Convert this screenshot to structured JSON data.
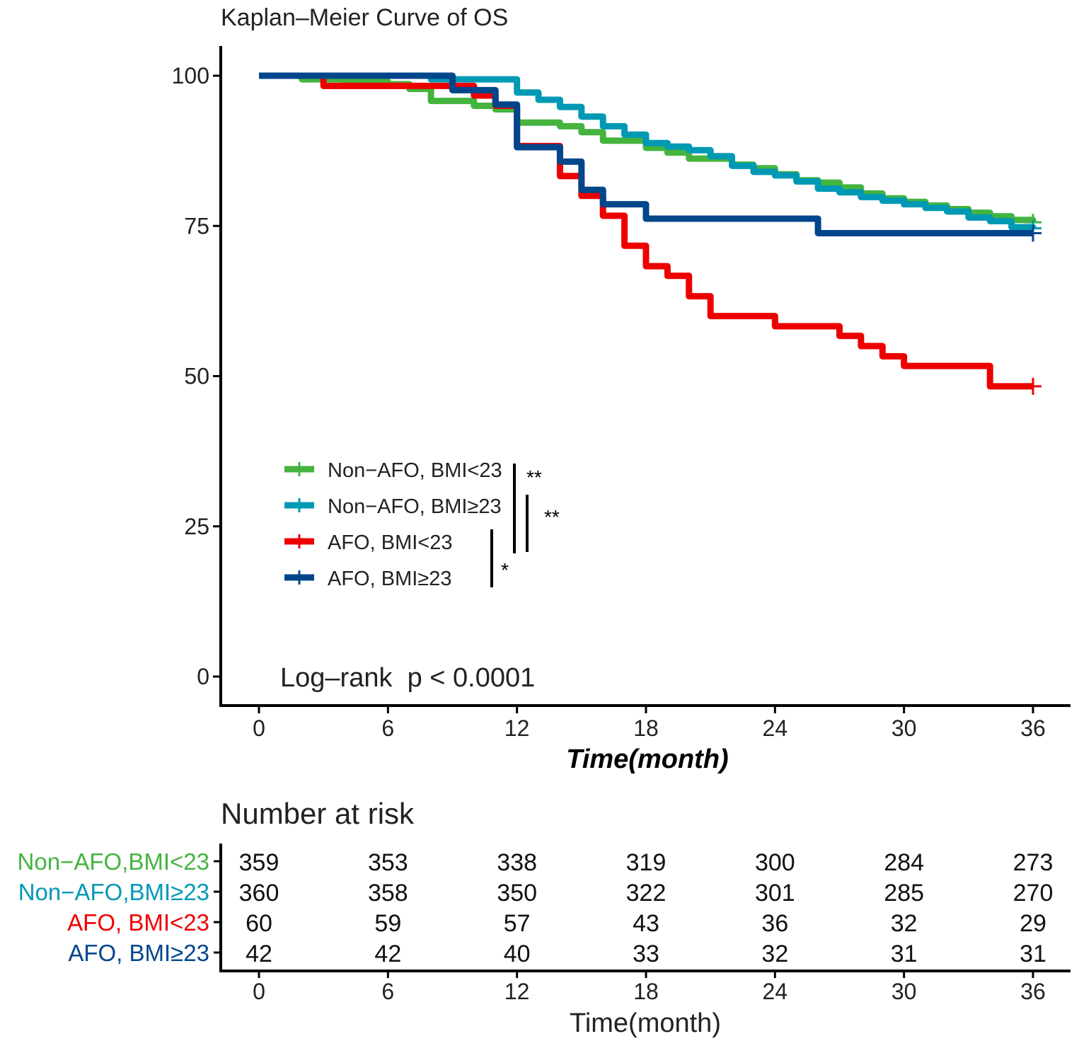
{
  "chart_data": {
    "type": "line",
    "title": "Kaplan–Meier Curve of OS",
    "xlabel": "Time(month)",
    "ylabel": "",
    "xlim": [
      0,
      36
    ],
    "ylim": [
      0,
      100
    ],
    "xticks": [
      "0",
      "6",
      "12",
      "18",
      "24",
      "30",
      "36"
    ],
    "yticks": [
      "0",
      "25",
      "50",
      "75",
      "100"
    ],
    "annotation": "Log–rank  p < 0.0001",
    "legend_position": "bottom-left",
    "series": [
      {
        "name": "Non−AFO, BMI<23",
        "color": "#44b43f",
        "x": [
          0,
          2,
          4,
          6,
          7,
          8,
          10,
          11,
          12,
          14,
          15,
          16,
          18,
          19,
          20,
          22,
          23,
          24,
          25,
          26,
          27,
          28,
          29,
          30,
          31,
          32,
          33,
          34,
          35,
          36
        ],
        "y": [
          100,
          99.4,
          99.0,
          98.6,
          97.8,
          95.8,
          95.0,
          94.4,
          92.2,
          91.6,
          90.6,
          89.2,
          88.0,
          87.2,
          86.2,
          85.2,
          84.6,
          83.6,
          82.6,
          82.2,
          81.4,
          80.4,
          79.6,
          79.0,
          78.4,
          77.8,
          77.2,
          76.6,
          76.0,
          75.6
        ]
      },
      {
        "name": "Non−AFO, BMI≥23",
        "color": "#0099b4",
        "x": [
          0,
          8,
          12,
          13,
          14,
          15,
          16,
          17,
          18,
          19,
          20,
          21,
          22,
          23,
          24,
          25,
          26,
          27,
          28,
          29,
          30,
          31,
          32,
          33,
          34,
          35,
          36
        ],
        "y": [
          100,
          99.4,
          97.2,
          96.0,
          94.8,
          93.2,
          91.6,
          90.2,
          88.8,
          88.2,
          87.6,
          86.6,
          85.0,
          84.0,
          83.4,
          82.4,
          81.2,
          80.6,
          79.8,
          79.2,
          78.6,
          78.0,
          77.4,
          76.4,
          75.8,
          74.8,
          74.6
        ]
      },
      {
        "name": "AFO, BMI<23",
        "color": "#ee0000",
        "x": [
          0,
          3,
          10,
          11,
          12,
          14,
          15,
          16,
          17,
          18,
          19,
          20,
          21,
          24,
          27,
          28,
          29,
          30,
          34,
          36
        ],
        "y": [
          100,
          98.3,
          96.7,
          95.0,
          88.3,
          83.3,
          80.0,
          76.7,
          71.7,
          68.3,
          66.7,
          63.3,
          60.0,
          58.3,
          56.7,
          55.0,
          53.3,
          51.7,
          48.3,
          48.3
        ]
      },
      {
        "name": "AFO, BMI≥23",
        "color": "#00468b",
        "x": [
          0,
          9,
          11,
          12,
          14,
          15,
          16,
          18,
          26,
          36
        ],
        "y": [
          100,
          97.6,
          95.2,
          88.1,
          85.7,
          81.0,
          78.6,
          76.2,
          73.8,
          73.8
        ]
      }
    ],
    "significance": [
      {
        "pair": [
          "Non−AFO, BMI<23",
          "AFO, BMI<23"
        ],
        "label": "**"
      },
      {
        "pair": [
          "Non−AFO, BMI≥23",
          "AFO, BMI<23"
        ],
        "label": "**"
      },
      {
        "pair": [
          "AFO, BMI<23",
          "AFO, BMI≥23"
        ],
        "label": "*"
      }
    ],
    "risk_table": {
      "title": "Number at risk",
      "xlabel": "Time(month)",
      "row_labels": [
        "Non−AFO,BMI<23",
        "Non−AFO,BMI≥23",
        "AFO, BMI<23",
        "AFO, BMI≥23"
      ],
      "rows": [
        [
          "359",
          "353",
          "338",
          "319",
          "300",
          "284",
          "273"
        ],
        [
          "360",
          "358",
          "350",
          "322",
          "301",
          "285",
          "270"
        ],
        [
          "60",
          "59",
          "57",
          "43",
          "36",
          "32",
          "29"
        ],
        [
          "42",
          "42",
          "40",
          "33",
          "32",
          "31",
          "31"
        ]
      ]
    }
  }
}
